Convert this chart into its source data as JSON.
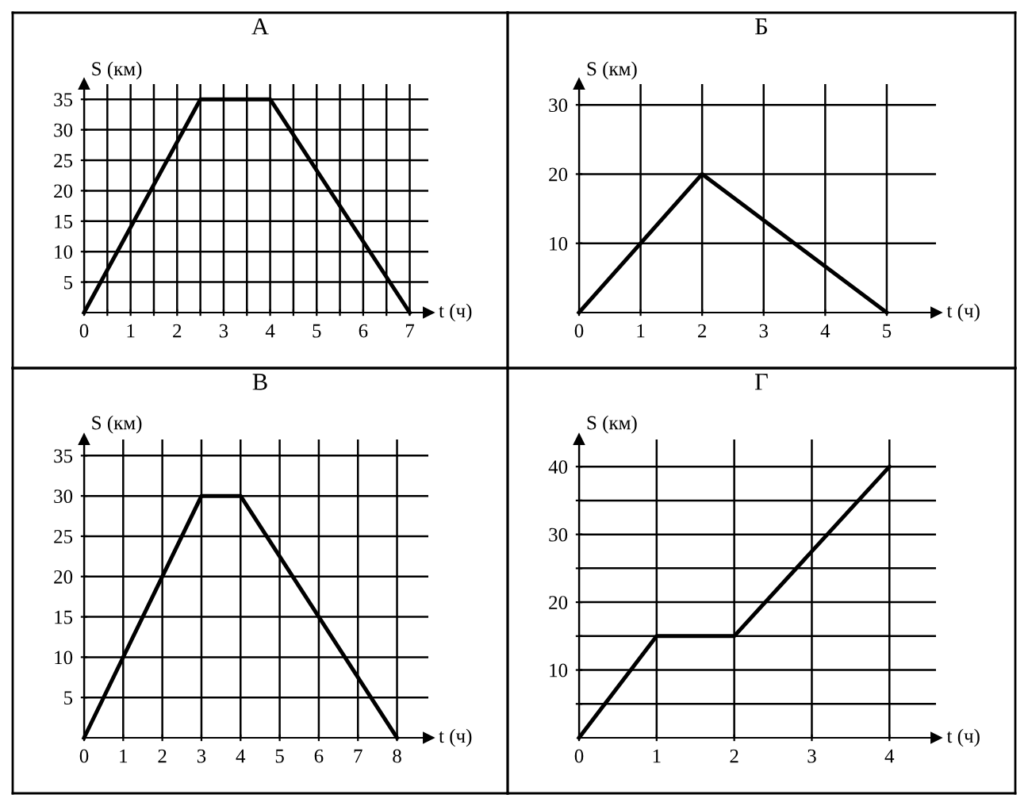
{
  "chart_data": [
    {
      "type": "line",
      "title": "А",
      "xlabel": "t (ч)",
      "ylabel": "S (км)",
      "x": [
        0,
        2.5,
        4,
        7
      ],
      "series": [
        {
          "color": "#000000",
          "values": [
            0,
            35,
            35,
            0
          ]
        }
      ],
      "xlim": [
        0,
        7.4
      ],
      "ylim": [
        0,
        37.5
      ],
      "xticks": [
        0,
        {
          "value": 0.5,
          "label": null
        },
        1,
        {
          "value": 1.5,
          "label": null
        },
        2,
        {
          "value": 2.5,
          "label": null
        },
        3,
        {
          "value": 3.5,
          "label": null
        },
        4,
        {
          "value": 4.5,
          "label": null
        },
        5,
        {
          "value": 5.5,
          "label": null
        },
        6,
        {
          "value": 6.5,
          "label": null
        },
        7
      ],
      "yticks": [
        5,
        10,
        15,
        20,
        25,
        30,
        35
      ],
      "grid": true,
      "marker": "none",
      "line_style": "solid"
    },
    {
      "type": "line",
      "title": "Б",
      "xlabel": "t (ч)",
      "ylabel": "S (км)",
      "x": [
        0,
        2,
        5
      ],
      "series": [
        {
          "color": "#000000",
          "values": [
            0,
            20,
            0
          ]
        }
      ],
      "xlim": [
        0,
        5.8
      ],
      "ylim": [
        0,
        33
      ],
      "xticks": [
        0,
        1,
        2,
        3,
        4,
        5
      ],
      "yticks": [
        10,
        20,
        30
      ],
      "grid": true,
      "marker": "none",
      "line_style": "solid"
    },
    {
      "type": "line",
      "title": "В",
      "xlabel": "t (ч)",
      "ylabel": "S (км)",
      "x": [
        0,
        3,
        4,
        8
      ],
      "series": [
        {
          "color": "#000000",
          "values": [
            0,
            30,
            30,
            0
          ]
        }
      ],
      "xlim": [
        0,
        8.8
      ],
      "ylim": [
        0,
        37
      ],
      "xticks": [
        0,
        1,
        2,
        3,
        4,
        5,
        6,
        7,
        8
      ],
      "yticks": [
        5,
        10,
        15,
        20,
        25,
        30,
        35
      ],
      "grid": true,
      "marker": "none",
      "line_style": "solid"
    },
    {
      "type": "line",
      "title": "Г",
      "xlabel": "t (ч)",
      "ylabel": "S (км)",
      "x": [
        0,
        1,
        2,
        4
      ],
      "series": [
        {
          "color": "#000000",
          "values": [
            0,
            15,
            15,
            40
          ]
        }
      ],
      "xlim": [
        0,
        4.6
      ],
      "ylim": [
        0,
        44
      ],
      "xticks": [
        0,
        1,
        2,
        3,
        4
      ],
      "yticks": [
        {
          "value": 5,
          "label": null
        },
        10,
        {
          "value": 15,
          "label": null
        },
        20,
        {
          "value": 25,
          "label": null
        },
        30,
        {
          "value": 35,
          "label": null
        },
        40
      ],
      "grid": true,
      "marker": "none",
      "line_style": "solid"
    }
  ]
}
